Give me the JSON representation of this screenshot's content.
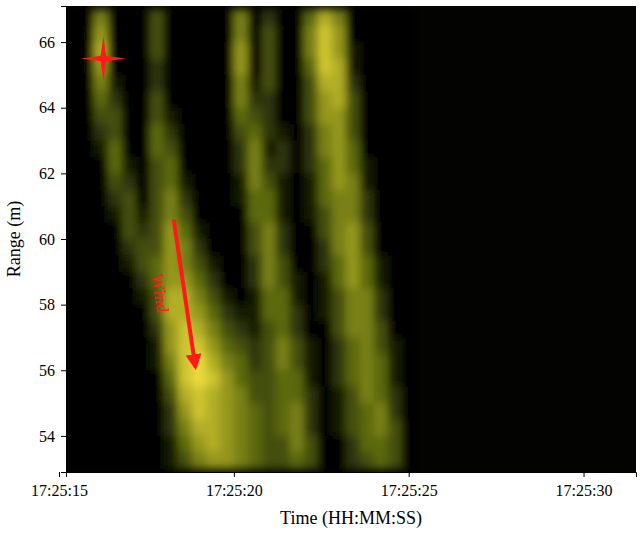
{
  "chart_data": {
    "type": "heatmap",
    "x_label": "Time (HH:MM:SS)",
    "y_label": "Range (m)",
    "xlim": [
      "17:25:15.200",
      "17:25:31.500"
    ],
    "xticks": [
      "17:25:15",
      "17:25:20",
      "17:25:25",
      "17:25:30"
    ],
    "ylim": [
      52.9,
      67.1
    ],
    "yticks": [
      54,
      56,
      58,
      60,
      62,
      64,
      66
    ],
    "x_edges": [
      "17:25:15.200",
      "17:25:15.600",
      "17:25:16.000",
      "17:25:16.400",
      "17:25:16.800",
      "17:25:17.200",
      "17:25:17.600",
      "17:25:18.000",
      "17:25:18.400",
      "17:25:18.800",
      "17:25:19.200",
      "17:25:19.600",
      "17:25:20.000",
      "17:25:20.400",
      "17:25:20.800",
      "17:25:21.200",
      "17:25:21.600",
      "17:25:22.000",
      "17:25:22.400",
      "17:25:22.800",
      "17:25:23.200",
      "17:25:23.600",
      "17:25:24.000",
      "17:25:24.400",
      "17:25:24.800",
      "17:25:25.200"
    ],
    "y_edges": [
      67,
      66.5,
      66,
      65.5,
      65,
      64.5,
      64,
      63.5,
      63,
      62.5,
      62,
      61.5,
      61,
      60.5,
      60,
      59.5,
      59,
      58.5,
      58,
      57.5,
      57,
      56.5,
      56,
      55.5,
      55,
      54.5,
      54,
      53.5,
      53
    ],
    "values": [
      [
        0,
        0,
        5,
        0,
        0,
        0,
        3,
        0,
        0,
        0,
        0,
        0,
        5,
        0,
        2,
        0,
        0,
        4,
        7,
        5,
        0,
        0,
        0,
        0,
        0
      ],
      [
        0,
        0,
        6,
        0,
        0,
        0,
        3,
        0,
        0,
        0,
        0,
        0,
        5,
        0,
        3,
        0,
        0,
        5,
        8,
        6,
        0,
        0,
        0,
        0,
        0
      ],
      [
        0,
        0,
        7,
        0,
        0,
        0,
        3,
        0,
        0,
        0,
        0,
        0,
        6,
        0,
        3,
        0,
        0,
        5,
        8,
        6,
        1,
        0,
        0,
        0,
        0
      ],
      [
        0,
        0,
        6,
        0,
        0,
        0,
        2,
        0,
        0,
        0,
        0,
        0,
        6,
        0,
        3,
        0,
        0,
        4,
        8,
        7,
        1,
        0,
        0,
        0,
        0
      ],
      [
        0,
        0,
        5,
        1,
        0,
        0,
        2,
        0,
        0,
        0,
        0,
        0,
        5,
        1,
        3,
        0,
        0,
        3,
        7,
        7,
        2,
        0,
        0,
        0,
        0
      ],
      [
        0,
        0,
        4,
        2,
        0,
        0,
        3,
        0,
        0,
        0,
        0,
        0,
        5,
        2,
        2,
        0,
        0,
        3,
        6,
        7,
        3,
        0,
        0,
        0,
        0
      ],
      [
        0,
        0,
        3,
        3,
        0,
        0,
        3,
        1,
        0,
        0,
        0,
        0,
        4,
        3,
        2,
        0,
        0,
        3,
        6,
        6,
        3,
        0,
        0,
        0,
        0
      ],
      [
        0,
        0,
        2,
        3,
        0,
        0,
        4,
        2,
        0,
        0,
        0,
        0,
        3,
        4,
        2,
        1,
        0,
        2,
        5,
        6,
        3,
        0,
        0,
        0,
        0
      ],
      [
        0,
        0,
        1,
        4,
        0,
        0,
        4,
        3,
        0,
        0,
        0,
        0,
        2,
        5,
        1,
        2,
        0,
        2,
        5,
        6,
        4,
        0,
        0,
        0,
        0
      ],
      [
        0,
        0,
        0,
        4,
        1,
        0,
        3,
        4,
        0,
        0,
        0,
        0,
        2,
        5,
        2,
        2,
        0,
        2,
        4,
        6,
        4,
        1,
        0,
        0,
        0
      ],
      [
        0,
        0,
        0,
        3,
        2,
        0,
        3,
        4,
        1,
        0,
        0,
        0,
        1,
        5,
        3,
        1,
        0,
        1,
        4,
        6,
        5,
        1,
        0,
        0,
        0
      ],
      [
        0,
        0,
        0,
        2,
        3,
        0,
        3,
        5,
        2,
        0,
        0,
        0,
        1,
        4,
        4,
        1,
        0,
        1,
        4,
        5,
        5,
        2,
        0,
        0,
        0
      ],
      [
        0,
        0,
        0,
        1,
        3,
        1,
        3,
        5,
        3,
        0,
        0,
        0,
        0,
        4,
        4,
        1,
        0,
        1,
        3,
        5,
        5,
        2,
        0,
        0,
        0
      ],
      [
        0,
        0,
        0,
        0,
        3,
        2,
        3,
        6,
        4,
        1,
        0,
        0,
        0,
        3,
        5,
        2,
        0,
        0,
        3,
        5,
        6,
        3,
        0,
        0,
        0
      ],
      [
        0,
        0,
        0,
        0,
        2,
        3,
        3,
        6,
        5,
        2,
        0,
        0,
        0,
        3,
        5,
        2,
        0,
        0,
        2,
        5,
        6,
        3,
        0,
        0,
        0
      ],
      [
        0,
        0,
        0,
        0,
        1,
        3,
        4,
        6,
        5,
        3,
        1,
        0,
        0,
        2,
        5,
        3,
        0,
        0,
        2,
        4,
        6,
        4,
        1,
        0,
        0
      ],
      [
        0,
        0,
        0,
        0,
        0,
        2,
        4,
        6,
        6,
        4,
        2,
        0,
        0,
        2,
        5,
        3,
        1,
        0,
        1,
        4,
        6,
        4,
        1,
        0,
        0
      ],
      [
        0,
        0,
        0,
        0,
        0,
        1,
        3,
        7,
        7,
        5,
        3,
        1,
        0,
        1,
        4,
        4,
        1,
        0,
        1,
        3,
        5,
        5,
        2,
        0,
        0
      ],
      [
        0,
        0,
        0,
        0,
        0,
        0,
        3,
        7,
        7,
        6,
        4,
        2,
        1,
        1,
        4,
        4,
        2,
        0,
        1,
        3,
        5,
        5,
        2,
        0,
        0
      ],
      [
        0,
        0,
        0,
        0,
        0,
        0,
        2,
        6,
        8,
        7,
        5,
        3,
        2,
        1,
        3,
        4,
        2,
        0,
        0,
        3,
        5,
        5,
        3,
        0,
        0
      ],
      [
        0,
        0,
        0,
        0,
        0,
        0,
        1,
        6,
        8,
        8,
        6,
        4,
        3,
        2,
        3,
        5,
        3,
        1,
        0,
        2,
        4,
        5,
        3,
        1,
        0
      ],
      [
        0,
        0,
        0,
        0,
        0,
        0,
        1,
        5,
        8,
        9,
        7,
        5,
        4,
        2,
        3,
        5,
        3,
        1,
        0,
        2,
        4,
        5,
        4,
        1,
        0
      ],
      [
        0,
        0,
        0,
        0,
        0,
        0,
        0,
        4,
        8,
        9,
        8,
        6,
        4,
        3,
        3,
        4,
        4,
        1,
        0,
        2,
        4,
        5,
        4,
        1,
        0
      ],
      [
        0,
        0,
        0,
        0,
        0,
        0,
        0,
        3,
        7,
        8,
        7,
        6,
        5,
        3,
        3,
        4,
        4,
        2,
        0,
        1,
        3,
        5,
        4,
        2,
        0
      ],
      [
        0,
        0,
        0,
        0,
        0,
        0,
        0,
        2,
        6,
        8,
        7,
        6,
        5,
        4,
        3,
        4,
        5,
        2,
        0,
        1,
        3,
        4,
        5,
        2,
        0
      ],
      [
        0,
        0,
        0,
        0,
        0,
        0,
        0,
        2,
        5,
        7,
        7,
        6,
        5,
        4,
        3,
        4,
        5,
        2,
        0,
        1,
        3,
        4,
        5,
        3,
        0
      ],
      [
        0,
        0,
        0,
        0,
        0,
        0,
        0,
        1,
        4,
        6,
        7,
        6,
        5,
        4,
        3,
        3,
        5,
        3,
        0,
        0,
        2,
        4,
        4,
        3,
        0
      ],
      [
        0,
        0,
        0,
        0,
        0,
        0,
        0,
        1,
        3,
        5,
        6,
        6,
        5,
        4,
        3,
        3,
        4,
        3,
        0,
        0,
        2,
        3,
        4,
        3,
        0
      ]
    ],
    "star": {
      "x": "17:25:16.270",
      "y": 65.5
    },
    "wind_arrow": {
      "text": "Wind",
      "x": [
        "17:25:18.280",
        "17:25:18.900"
      ],
      "y": [
        60.6,
        56.1
      ]
    }
  }
}
